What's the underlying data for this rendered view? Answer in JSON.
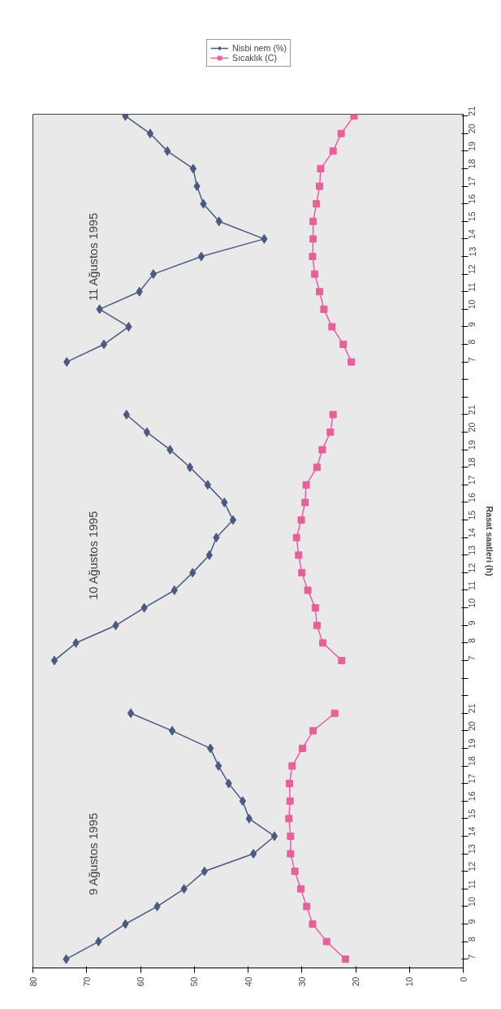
{
  "chart_data": {
    "type": "line",
    "orientation": "horizontal",
    "ylabel": "Rasat saatleri (h)",
    "categories": [
      "21",
      "20",
      "19",
      "18",
      "17",
      "16",
      "15",
      "14",
      "13",
      "12",
      "11",
      "10",
      "9",
      "8",
      "7",
      null,
      null,
      "21",
      "20",
      "19",
      "18",
      "17",
      "16",
      "15",
      "14",
      "13",
      "12",
      "11",
      "10",
      "9",
      "8",
      "7",
      null,
      null,
      "21",
      "20",
      "19",
      "18",
      "17",
      "16",
      "15",
      "14",
      "13",
      "12",
      "11",
      "10",
      "9",
      "8",
      "7"
    ],
    "xlim": [
      80,
      0
    ],
    "xticks": [
      80,
      70,
      60,
      50,
      40,
      30,
      20,
      10,
      0
    ],
    "legend": "top",
    "annotations": [
      "11 Ağustos 1995",
      "10 Ağustos 1995",
      "9 Ağustos 1995"
    ],
    "series": [
      {
        "name": "Nisbi nem (%)",
        "color": "#4b5a82",
        "marker": "diamond",
        "values": [
          62.8,
          58.2,
          55.0,
          50.2,
          49.5,
          48.3,
          45.4,
          37.0,
          48.7,
          57.6,
          60.2,
          67.6,
          62.2,
          66.8,
          73.7,
          null,
          null,
          62.6,
          58.8,
          54.5,
          50.8,
          47.5,
          44.4,
          42.8,
          45.9,
          47.2,
          50.3,
          53.7,
          59.3,
          64.6,
          72.0,
          76.0,
          null,
          null,
          61.8,
          54.1,
          47.0,
          45.5,
          43.6,
          41.0,
          39.8,
          35.1,
          39.0,
          48.1,
          51.9,
          56.9,
          62.8,
          67.8,
          73.8
        ]
      },
      {
        "name": "Sıcaklık (C)",
        "color": "#e8609a",
        "marker": "square",
        "values": [
          20.3,
          22.7,
          24.2,
          26.5,
          26.7,
          27.3,
          27.9,
          27.9,
          28.0,
          27.6,
          26.7,
          25.9,
          24.4,
          22.3,
          20.8,
          null,
          null,
          24.2,
          24.7,
          26.2,
          27.2,
          29.2,
          29.4,
          30.1,
          31.0,
          30.6,
          30.0,
          28.9,
          27.5,
          27.2,
          26.1,
          22.6,
          null,
          null,
          23.9,
          27.9,
          29.9,
          31.8,
          32.3,
          32.2,
          32.4,
          32.1,
          32.1,
          31.3,
          30.2,
          29.1,
          28.0,
          25.4,
          21.9
        ]
      }
    ]
  }
}
